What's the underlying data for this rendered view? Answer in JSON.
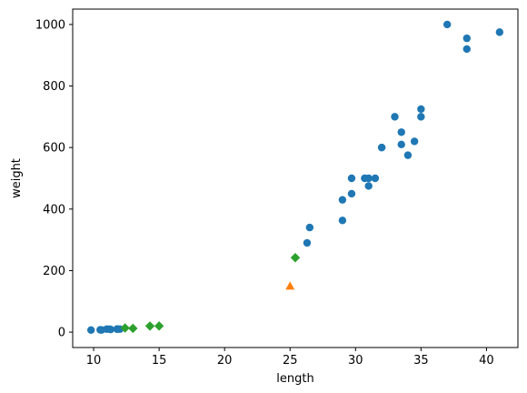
{
  "chart_data": {
    "type": "scatter",
    "title": "",
    "xlabel": "length",
    "ylabel": "weight",
    "xlim": [
      8.4,
      42.4
    ],
    "ylim": [
      -50,
      1050
    ],
    "xticks": [
      10,
      15,
      20,
      25,
      30,
      35,
      40
    ],
    "yticks": [
      0,
      200,
      400,
      600,
      800,
      1000
    ],
    "grid": false,
    "legend": "none",
    "series": [
      {
        "marker": "circle",
        "color": "#1f77b4",
        "points": [
          [
            9.8,
            6.7
          ],
          [
            10.5,
            7.5
          ],
          [
            10.6,
            7.0
          ],
          [
            11.0,
            9.7
          ],
          [
            11.2,
            9.8
          ],
          [
            11.3,
            8.7
          ],
          [
            11.8,
            10.0
          ],
          [
            11.8,
            9.9
          ],
          [
            12.0,
            9.8
          ],
          [
            26.3,
            290
          ],
          [
            26.5,
            340
          ],
          [
            29.0,
            363
          ],
          [
            29.0,
            430
          ],
          [
            29.7,
            450
          ],
          [
            29.7,
            500
          ],
          [
            30.7,
            500
          ],
          [
            31.0,
            475
          ],
          [
            31.0,
            500
          ],
          [
            31.5,
            500
          ],
          [
            32.0,
            600
          ],
          [
            32.0,
            600
          ],
          [
            33.0,
            700
          ],
          [
            33.5,
            610
          ],
          [
            33.5,
            650
          ],
          [
            34.0,
            575
          ],
          [
            34.5,
            620
          ],
          [
            35.0,
            700
          ],
          [
            35.0,
            725
          ],
          [
            37.0,
            1000
          ],
          [
            38.5,
            920
          ],
          [
            38.5,
            955
          ],
          [
            41.0,
            975
          ]
        ]
      },
      {
        "marker": "triangle",
        "color": "#ff7f0e",
        "points": [
          [
            25.0,
            150
          ]
        ]
      },
      {
        "marker": "diamond",
        "color": "#2ca02c",
        "points": [
          [
            12.4,
            13.4
          ],
          [
            13.0,
            12.2
          ],
          [
            14.3,
            19.7
          ],
          [
            15.0,
            19.9
          ],
          [
            25.4,
            242
          ]
        ]
      }
    ]
  }
}
